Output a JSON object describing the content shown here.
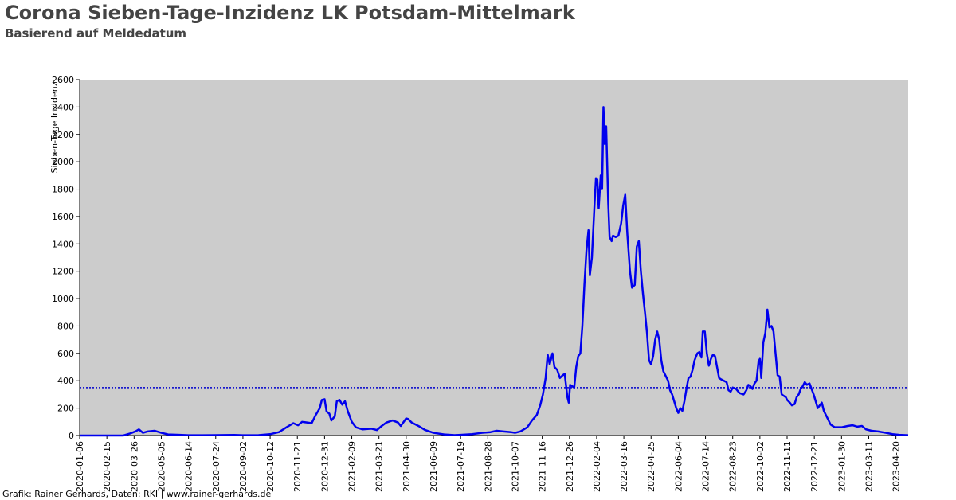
{
  "title": "Corona Sieben-Tage-Inzidenz LK Potsdam-Mittelmark",
  "subtitle": "Basierend auf Meldedatum",
  "footer": "Grafik: Rainer Gerhards, Daten: RKI | www.rainer-gerhards.de",
  "colors": {
    "plot_bg": "#cccccc",
    "line": "#0000ee",
    "reference_line": "#0000cc",
    "title": "#444444"
  },
  "chart_data": {
    "type": "line",
    "title": "Corona Sieben-Tage-Inzidenz LK Potsdam-Mittelmark",
    "subtitle": "Basierend auf Meldedatum",
    "xlabel": "",
    "ylabel": "Sieben-Tage Inzidenz",
    "ylim": [
      0,
      2600
    ],
    "yticks": [
      0,
      200,
      400,
      600,
      800,
      1000,
      1200,
      1400,
      1600,
      1800,
      2000,
      2200,
      2400,
      2600
    ],
    "xlim": [
      "2020-01-06",
      "2023-05-08"
    ],
    "xticks": [
      "2020-01-06",
      "2020-02-15",
      "2020-03-26",
      "2020-05-05",
      "2020-06-14",
      "2020-07-24",
      "2020-09-02",
      "2020-10-12",
      "2020-11-21",
      "2020-12-31",
      "2021-02-09",
      "2021-03-21",
      "2021-04-30",
      "2021-06-09",
      "2021-07-19",
      "2021-08-28",
      "2021-10-07",
      "2021-11-16",
      "2021-12-26",
      "2022-02-04",
      "2022-03-16",
      "2022-04-25",
      "2022-06-04",
      "2022-07-14",
      "2022-08-23",
      "2022-10-02",
      "2022-11-11",
      "2022-12-21",
      "2023-01-30",
      "2023-03-11",
      "2023-04-20"
    ],
    "reference_line": 350,
    "grid": false,
    "series": [
      {
        "values": [
          [
            "2020-01-06",
            0
          ],
          [
            "2020-03-10",
            0
          ],
          [
            "2020-03-20",
            15
          ],
          [
            "2020-03-28",
            30
          ],
          [
            "2020-04-02",
            45
          ],
          [
            "2020-04-08",
            20
          ],
          [
            "2020-04-15",
            30
          ],
          [
            "2020-04-25",
            35
          ],
          [
            "2020-05-05",
            20
          ],
          [
            "2020-05-15",
            8
          ],
          [
            "2020-06-01",
            5
          ],
          [
            "2020-06-14",
            2
          ],
          [
            "2020-07-24",
            3
          ],
          [
            "2020-08-20",
            4
          ],
          [
            "2020-09-02",
            2
          ],
          [
            "2020-09-25",
            3
          ],
          [
            "2020-10-12",
            10
          ],
          [
            "2020-10-25",
            25
          ],
          [
            "2020-11-05",
            60
          ],
          [
            "2020-11-15",
            90
          ],
          [
            "2020-11-22",
            75
          ],
          [
            "2020-11-28",
            100
          ],
          [
            "2020-12-05",
            95
          ],
          [
            "2020-12-12",
            90
          ],
          [
            "2020-12-18",
            150
          ],
          [
            "2020-12-24",
            200
          ],
          [
            "2020-12-27",
            260
          ],
          [
            "2020-12-31",
            265
          ],
          [
            "2021-01-03",
            175
          ],
          [
            "2021-01-07",
            160
          ],
          [
            "2021-01-10",
            110
          ],
          [
            "2021-01-15",
            140
          ],
          [
            "2021-01-18",
            250
          ],
          [
            "2021-01-22",
            260
          ],
          [
            "2021-01-26",
            225
          ],
          [
            "2021-01-30",
            250
          ],
          [
            "2021-02-03",
            180
          ],
          [
            "2021-02-06",
            140
          ],
          [
            "2021-02-09",
            100
          ],
          [
            "2021-02-15",
            60
          ],
          [
            "2021-02-25",
            45
          ],
          [
            "2021-03-10",
            50
          ],
          [
            "2021-03-18",
            40
          ],
          [
            "2021-03-25",
            70
          ],
          [
            "2021-04-01",
            95
          ],
          [
            "2021-04-10",
            110
          ],
          [
            "2021-04-18",
            95
          ],
          [
            "2021-04-22",
            70
          ],
          [
            "2021-04-25",
            90
          ],
          [
            "2021-04-30",
            125
          ],
          [
            "2021-05-03",
            120
          ],
          [
            "2021-05-08",
            95
          ],
          [
            "2021-05-18",
            70
          ],
          [
            "2021-05-28",
            40
          ],
          [
            "2021-06-09",
            20
          ],
          [
            "2021-06-25",
            8
          ],
          [
            "2021-07-10",
            3
          ],
          [
            "2021-07-19",
            5
          ],
          [
            "2021-08-05",
            10
          ],
          [
            "2021-08-20",
            20
          ],
          [
            "2021-09-01",
            25
          ],
          [
            "2021-09-10",
            35
          ],
          [
            "2021-09-20",
            30
          ],
          [
            "2021-10-01",
            25
          ],
          [
            "2021-10-07",
            20
          ],
          [
            "2021-10-15",
            30
          ],
          [
            "2021-10-25",
            60
          ],
          [
            "2021-11-01",
            110
          ],
          [
            "2021-11-08",
            150
          ],
          [
            "2021-11-13",
            220
          ],
          [
            "2021-11-17",
            300
          ],
          [
            "2021-11-21",
            420
          ],
          [
            "2021-11-24",
            590
          ],
          [
            "2021-11-27",
            520
          ],
          [
            "2021-12-01",
            600
          ],
          [
            "2021-12-04",
            500
          ],
          [
            "2021-12-08",
            480
          ],
          [
            "2021-12-12",
            420
          ],
          [
            "2021-12-16",
            440
          ],
          [
            "2021-12-19",
            450
          ],
          [
            "2021-12-23",
            280
          ],
          [
            "2021-12-25",
            240
          ],
          [
            "2021-12-27",
            370
          ],
          [
            "2021-12-30",
            360
          ],
          [
            "2022-01-02",
            350
          ],
          [
            "2022-01-05",
            500
          ],
          [
            "2022-01-08",
            580
          ],
          [
            "2022-01-11",
            600
          ],
          [
            "2022-01-14",
            800
          ],
          [
            "2022-01-17",
            1100
          ],
          [
            "2022-01-20",
            1350
          ],
          [
            "2022-01-23",
            1500
          ],
          [
            "2022-01-25",
            1170
          ],
          [
            "2022-01-28",
            1300
          ],
          [
            "2022-02-01",
            1700
          ],
          [
            "2022-02-03",
            1880
          ],
          [
            "2022-02-05",
            1870
          ],
          [
            "2022-02-07",
            1660
          ],
          [
            "2022-02-10",
            1900
          ],
          [
            "2022-02-12",
            1800
          ],
          [
            "2022-02-14",
            2400
          ],
          [
            "2022-02-16",
            2130
          ],
          [
            "2022-02-18",
            2260
          ],
          [
            "2022-02-21",
            1700
          ],
          [
            "2022-02-23",
            1450
          ],
          [
            "2022-02-26",
            1420
          ],
          [
            "2022-02-28",
            1460
          ],
          [
            "2022-03-04",
            1450
          ],
          [
            "2022-03-08",
            1460
          ],
          [
            "2022-03-12",
            1550
          ],
          [
            "2022-03-15",
            1680
          ],
          [
            "2022-03-18",
            1760
          ],
          [
            "2022-03-21",
            1480
          ],
          [
            "2022-03-25",
            1200
          ],
          [
            "2022-03-28",
            1080
          ],
          [
            "2022-04-01",
            1100
          ],
          [
            "2022-04-04",
            1380
          ],
          [
            "2022-04-07",
            1420
          ],
          [
            "2022-04-10",
            1200
          ],
          [
            "2022-04-13",
            1040
          ],
          [
            "2022-04-16",
            900
          ],
          [
            "2022-04-19",
            750
          ],
          [
            "2022-04-22",
            550
          ],
          [
            "2022-04-25",
            520
          ],
          [
            "2022-04-28",
            580
          ],
          [
            "2022-05-01",
            700
          ],
          [
            "2022-05-04",
            760
          ],
          [
            "2022-05-07",
            700
          ],
          [
            "2022-05-10",
            550
          ],
          [
            "2022-05-13",
            470
          ],
          [
            "2022-05-16",
            440
          ],
          [
            "2022-05-20",
            400
          ],
          [
            "2022-05-23",
            330
          ],
          [
            "2022-05-26",
            300
          ],
          [
            "2022-05-29",
            250
          ],
          [
            "2022-06-01",
            200
          ],
          [
            "2022-06-04",
            165
          ],
          [
            "2022-06-07",
            200
          ],
          [
            "2022-06-10",
            180
          ],
          [
            "2022-06-13",
            250
          ],
          [
            "2022-06-16",
            340
          ],
          [
            "2022-06-19",
            420
          ],
          [
            "2022-06-22",
            430
          ],
          [
            "2022-06-25",
            480
          ],
          [
            "2022-06-28",
            550
          ],
          [
            "2022-07-02",
            600
          ],
          [
            "2022-07-05",
            610
          ],
          [
            "2022-07-08",
            570
          ],
          [
            "2022-07-10",
            760
          ],
          [
            "2022-07-13",
            760
          ],
          [
            "2022-07-16",
            600
          ],
          [
            "2022-07-19",
            510
          ],
          [
            "2022-07-22",
            560
          ],
          [
            "2022-07-25",
            590
          ],
          [
            "2022-07-28",
            580
          ],
          [
            "2022-07-31",
            500
          ],
          [
            "2022-08-03",
            420
          ],
          [
            "2022-08-06",
            410
          ],
          [
            "2022-08-10",
            400
          ],
          [
            "2022-08-14",
            390
          ],
          [
            "2022-08-17",
            330
          ],
          [
            "2022-08-20",
            320
          ],
          [
            "2022-08-23",
            350
          ],
          [
            "2022-08-28",
            340
          ],
          [
            "2022-09-02",
            310
          ],
          [
            "2022-09-08",
            300
          ],
          [
            "2022-09-12",
            330
          ],
          [
            "2022-09-15",
            370
          ],
          [
            "2022-09-18",
            360
          ],
          [
            "2022-09-21",
            340
          ],
          [
            "2022-09-24",
            380
          ],
          [
            "2022-09-27",
            400
          ],
          [
            "2022-09-30",
            540
          ],
          [
            "2022-10-02",
            560
          ],
          [
            "2022-10-04",
            420
          ],
          [
            "2022-10-07",
            680
          ],
          [
            "2022-10-10",
            750
          ],
          [
            "2022-10-13",
            920
          ],
          [
            "2022-10-16",
            790
          ],
          [
            "2022-10-19",
            800
          ],
          [
            "2022-10-22",
            760
          ],
          [
            "2022-10-25",
            600
          ],
          [
            "2022-10-28",
            440
          ],
          [
            "2022-10-31",
            430
          ],
          [
            "2022-11-03",
            300
          ],
          [
            "2022-11-06",
            290
          ],
          [
            "2022-11-09",
            280
          ],
          [
            "2022-11-11",
            260
          ],
          [
            "2022-11-15",
            240
          ],
          [
            "2022-11-18",
            220
          ],
          [
            "2022-11-22",
            230
          ],
          [
            "2022-11-25",
            280
          ],
          [
            "2022-11-28",
            300
          ],
          [
            "2022-12-01",
            340
          ],
          [
            "2022-12-04",
            360
          ],
          [
            "2022-12-07",
            390
          ],
          [
            "2022-12-10",
            370
          ],
          [
            "2022-12-14",
            380
          ],
          [
            "2022-12-17",
            340
          ],
          [
            "2022-12-20",
            300
          ],
          [
            "2022-12-23",
            250
          ],
          [
            "2022-12-26",
            200
          ],
          [
            "2022-12-29",
            220
          ],
          [
            "2023-01-01",
            240
          ],
          [
            "2023-01-04",
            180
          ],
          [
            "2023-01-07",
            150
          ],
          [
            "2023-01-10",
            120
          ],
          [
            "2023-01-14",
            80
          ],
          [
            "2023-01-20",
            60
          ],
          [
            "2023-01-30",
            60
          ],
          [
            "2023-02-08",
            70
          ],
          [
            "2023-02-15",
            75
          ],
          [
            "2023-02-22",
            65
          ],
          [
            "2023-03-01",
            70
          ],
          [
            "2023-03-07",
            45
          ],
          [
            "2023-03-15",
            35
          ],
          [
            "2023-03-25",
            30
          ],
          [
            "2023-04-05",
            20
          ],
          [
            "2023-04-15",
            10
          ],
          [
            "2023-04-25",
            5
          ],
          [
            "2023-05-08",
            2
          ]
        ]
      }
    ]
  }
}
